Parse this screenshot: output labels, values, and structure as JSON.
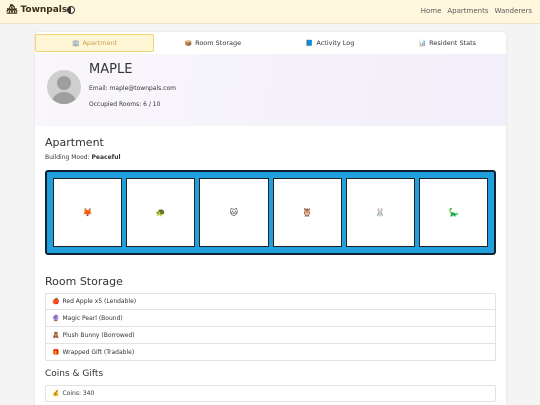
{
  "topbar": {
    "brand_icon": "🏘",
    "brand": "Townpals",
    "theme_icon": "half-moon-icon",
    "nav": [
      "Home",
      "Apartments",
      "Wanderers"
    ]
  },
  "tabs": [
    {
      "icon": "🏢",
      "label": "Apartment",
      "active": true
    },
    {
      "icon": "📦",
      "label": "Room Storage",
      "active": false
    },
    {
      "icon": "📘",
      "label": "Activity Log",
      "active": false
    },
    {
      "icon": "📊",
      "label": "Resident Stats",
      "active": false
    }
  ],
  "profile": {
    "name": "MAPLE",
    "email": "Email: maple@townpals.com",
    "rooms": "Occupied Rooms: 6 / 10"
  },
  "apartment": {
    "heading": "Apartment",
    "mood_label": "Building Mood: ",
    "mood_value": "Peaceful",
    "rooms": [
      "🦊",
      "🐢",
      "🐱",
      "🦉",
      "🐰",
      "🦕"
    ]
  },
  "storage": {
    "heading": "Room Storage",
    "items": [
      {
        "icon": "🍎",
        "label": "Red Apple x5 (Lendable)"
      },
      {
        "icon": "🔮",
        "label": "Magic Pearl (Bound)"
      },
      {
        "icon": "🧸",
        "label": "Plush Bunny (Borrowed)"
      },
      {
        "icon": "🎁",
        "label": "Wrapped Gift (Tradable)"
      }
    ]
  },
  "coins": {
    "heading": "Coins & Gifts",
    "icon": "💰",
    "label": "Coins: 340"
  },
  "colors": {
    "topbar_bg": "#fef7dd",
    "room_frame": "#1fa0dc",
    "active_tab_text": "#c9a24a"
  }
}
